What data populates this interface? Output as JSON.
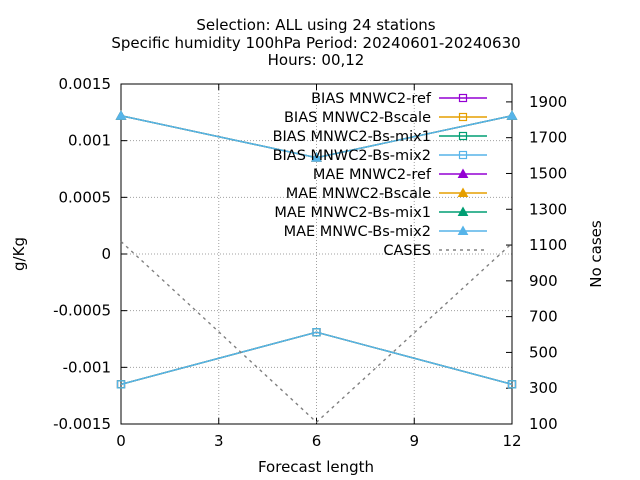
{
  "chart_data": {
    "type": "line",
    "title": [
      "Selection: ALL using    24 stations",
      "Specific humidity 100hPa   Period: 20240601-20240630",
      "Hours: 00,12"
    ],
    "xlabel": "Forecast length",
    "ylabel": "g/Kg",
    "y2label": "No cases",
    "xlim": [
      0,
      12
    ],
    "ylim": [
      -0.0015,
      0.0015
    ],
    "y2lim": [
      100,
      2000
    ],
    "x_ticks": [
      0,
      3,
      6,
      9,
      12
    ],
    "x_tick_labels": [
      "0",
      "3",
      "6",
      "9",
      "12"
    ],
    "y_ticks": [
      -0.0015,
      -0.001,
      -0.0005,
      0,
      0.0005,
      0.001,
      0.0015
    ],
    "y_tick_labels": [
      "-0.0015",
      "-0.001",
      "-0.0005",
      "0",
      "0.0005",
      "0.001",
      "0.0015"
    ],
    "y2_ticks": [
      100,
      300,
      500,
      700,
      900,
      1100,
      1300,
      1500,
      1700,
      1900
    ],
    "y2_tick_labels": [
      "100",
      "300",
      "500",
      "700",
      "900",
      "1100",
      "1300",
      "1500",
      "1700",
      "1900"
    ],
    "grid": true,
    "legend_position": "top-right",
    "x": [
      0,
      6,
      12
    ],
    "series": [
      {
        "name": "BIAS MNWC2-ref",
        "color": "#9400d3",
        "marker": "square",
        "axis": "y",
        "values": [
          -0.00115,
          -0.00069,
          -0.00115
        ]
      },
      {
        "name": "BIAS MNWC2-Bscale",
        "color": "#e69f00",
        "marker": "square",
        "axis": "y",
        "values": [
          -0.00115,
          -0.00069,
          -0.00115
        ]
      },
      {
        "name": "BIAS MNWC2-Bs-mix1",
        "color": "#009e73",
        "marker": "square",
        "axis": "y",
        "values": [
          -0.00115,
          -0.00069,
          -0.00115
        ]
      },
      {
        "name": "BIAS MNWC2-Bs-mix2",
        "color": "#56b4e9",
        "marker": "square",
        "axis": "y",
        "values": [
          -0.00115,
          -0.00069,
          -0.00115
        ]
      },
      {
        "name": "MAE MNWC2-ref",
        "color": "#9400d3",
        "marker": "triangle",
        "axis": "y",
        "values": [
          0.00122,
          0.00085,
          0.00122
        ]
      },
      {
        "name": "MAE MNWC2-Bscale",
        "color": "#e69f00",
        "marker": "triangle",
        "axis": "y",
        "values": [
          0.00122,
          0.00085,
          0.00122
        ]
      },
      {
        "name": "MAE MNWC2-Bs-mix1",
        "color": "#009e73",
        "marker": "triangle",
        "axis": "y",
        "values": [
          0.00122,
          0.00085,
          0.00122
        ]
      },
      {
        "name": "MAE MNWC-Bs-mix2",
        "color": "#56b4e9",
        "marker": "triangle",
        "axis": "y",
        "values": [
          0.00122,
          0.00085,
          0.00122
        ]
      },
      {
        "name": "CASES",
        "color": "#808080",
        "marker": "none",
        "dash": true,
        "axis": "y2",
        "values": [
          1120,
          110,
          1110
        ]
      }
    ]
  }
}
